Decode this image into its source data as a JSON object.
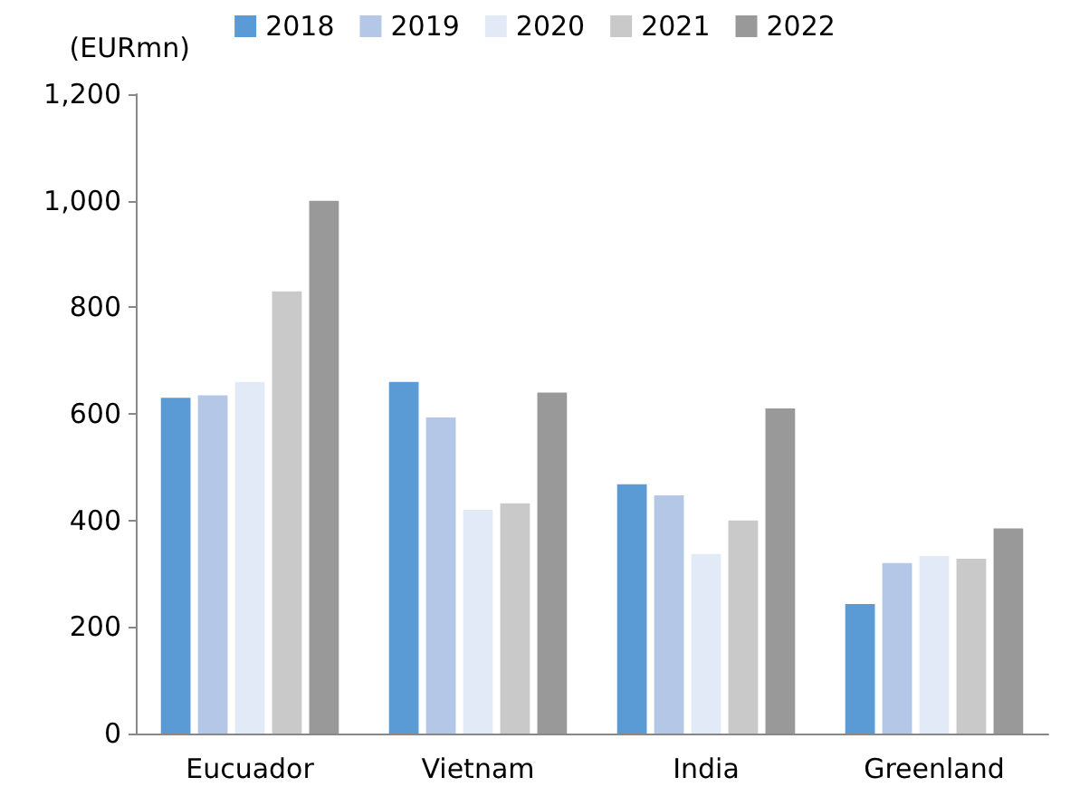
{
  "chart_data": {
    "type": "bar",
    "ylabel": "(EURmn)",
    "categories": [
      "Eucuador",
      "Vietnam",
      "India",
      "Greenland"
    ],
    "series": [
      {
        "name": "2018",
        "color": "#5b9bd5",
        "values": [
          630,
          660,
          468,
          243
        ]
      },
      {
        "name": "2019",
        "color": "#b4c7e7",
        "values": [
          635,
          593,
          447,
          320
        ]
      },
      {
        "name": "2020",
        "color": "#e3eaf7",
        "values": [
          660,
          420,
          337,
          333
        ]
      },
      {
        "name": "2021",
        "color": "#c9c9c9",
        "values": [
          830,
          432,
          400,
          328
        ]
      },
      {
        "name": "2022",
        "color": "#999999",
        "values": [
          1000,
          640,
          610,
          385
        ]
      }
    ],
    "ylim": [
      0,
      1200
    ],
    "yticks": [
      0,
      200,
      400,
      600,
      800,
      {
        "value": 1000,
        "label": "1,000"
      },
      {
        "value": 1200,
        "label": "1,200"
      }
    ],
    "grid": false,
    "legend": "top"
  }
}
